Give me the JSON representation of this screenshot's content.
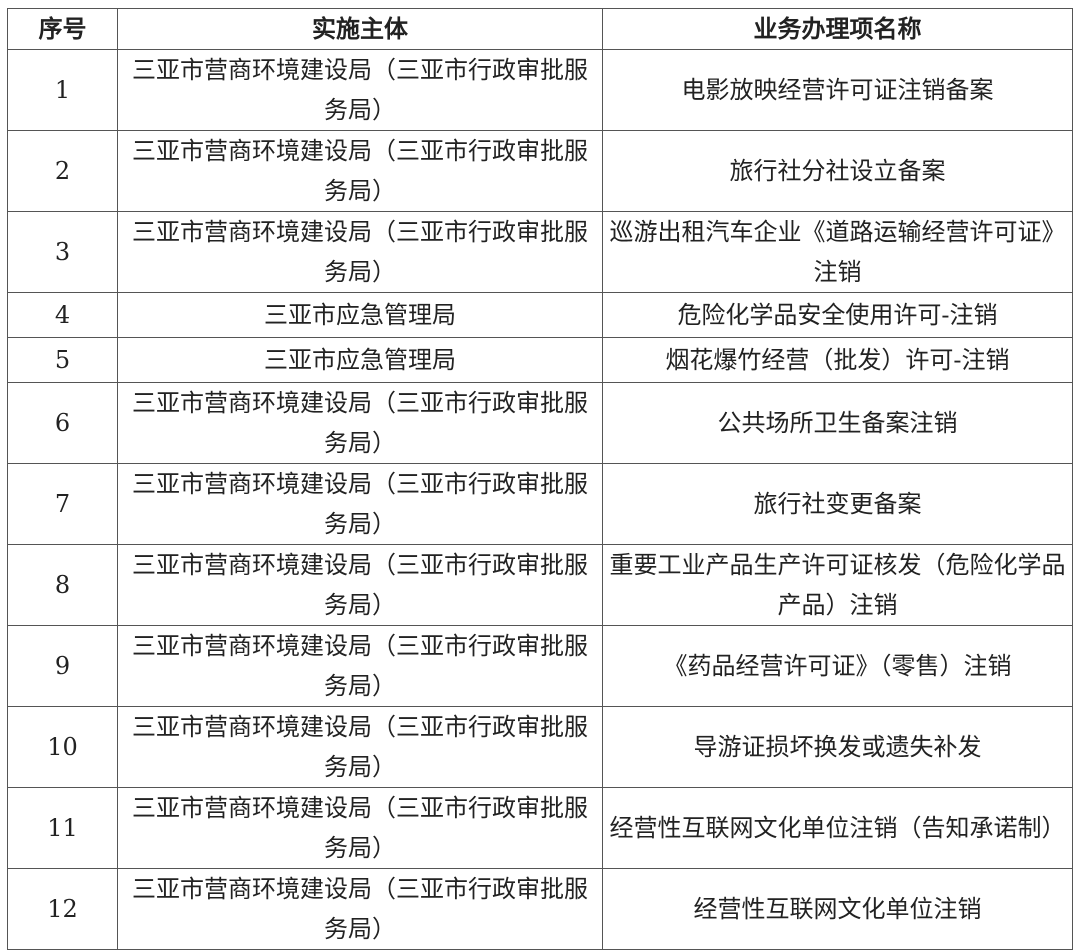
{
  "headers": [
    "序号",
    "实施主体",
    "业务办理项名称"
  ],
  "rows": [
    {
      "no": "1",
      "entity": "三亚市营商环境建设局（三亚市行政审批服务局）",
      "item": "电影放映经营许可证注销备案"
    },
    {
      "no": "2",
      "entity": "三亚市营商环境建设局（三亚市行政审批服务局）",
      "item": "旅行社分社设立备案"
    },
    {
      "no": "3",
      "entity": "三亚市营商环境建设局（三亚市行政审批服务局）",
      "item": "巡游出租汽车企业《道路运输经营许可证》注销"
    },
    {
      "no": "4",
      "entity": "三亚市应急管理局",
      "item": "危险化学品安全使用许可-注销"
    },
    {
      "no": "5",
      "entity": "三亚市应急管理局",
      "item": "烟花爆竹经营（批发）许可-注销"
    },
    {
      "no": "6",
      "entity": "三亚市营商环境建设局（三亚市行政审批服务局）",
      "item": "公共场所卫生备案注销"
    },
    {
      "no": "7",
      "entity": "三亚市营商环境建设局（三亚市行政审批服务局）",
      "item": "旅行社变更备案"
    },
    {
      "no": "8",
      "entity": "三亚市营商环境建设局（三亚市行政审批服务局）",
      "item": "重要工业产品生产许可证核发（危险化学品产品）注销"
    },
    {
      "no": "9",
      "entity": "三亚市营商环境建设局（三亚市行政审批服务局）",
      "item": "《药品经营许可证》（零售）注销"
    },
    {
      "no": "10",
      "entity": "三亚市营商环境建设局（三亚市行政审批服务局）",
      "item": "导游证损坏换发或遗失补发"
    },
    {
      "no": "11",
      "entity": "三亚市营商环境建设局（三亚市行政审批服务局）",
      "item": "经营性互联网文化单位注销（告知承诺制）"
    },
    {
      "no": "12",
      "entity": "三亚市营商环境建设局（三亚市行政审批服务局）",
      "item": "经营性互联网文化单位注销"
    }
  ]
}
